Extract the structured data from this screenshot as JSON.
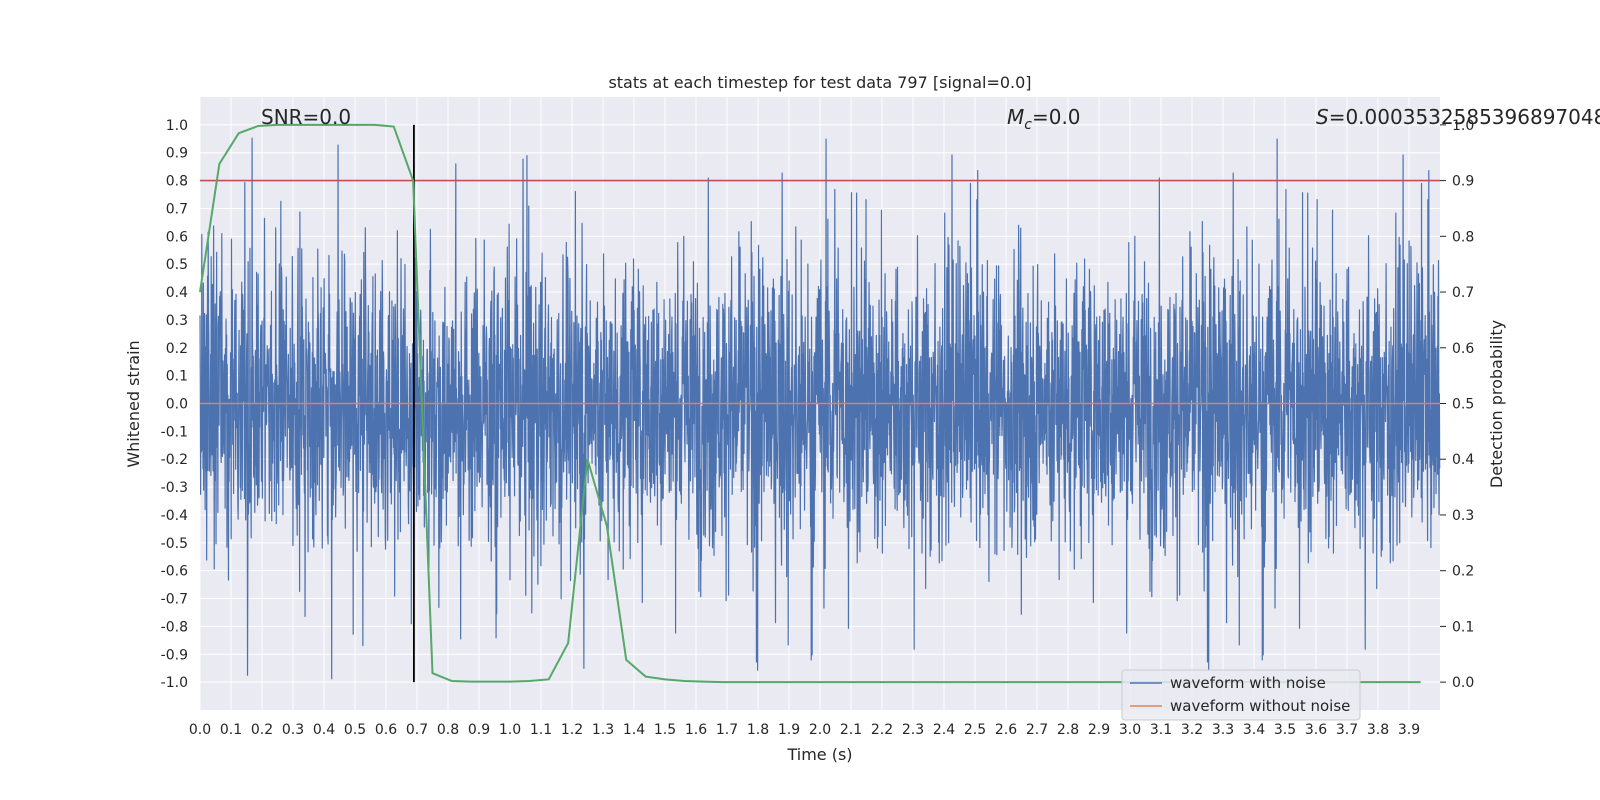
{
  "chart_data": {
    "type": "line",
    "title": "stats at each timestep for test data 797 [signal=0.0]",
    "xlabel": "Time (s)",
    "ylabel": "Whitened strain",
    "ylabel_right": "Detection probability",
    "xlim": [
      0.0,
      4.0
    ],
    "ylim": [
      -1.1,
      1.1
    ],
    "ylim_right": [
      -0.05,
      1.05
    ],
    "xticks": [
      "0.0",
      "0.1",
      "0.2",
      "0.3",
      "0.4",
      "0.5",
      "0.6",
      "0.7",
      "0.8",
      "0.9",
      "1.0",
      "1.1",
      "1.2",
      "1.3",
      "1.4",
      "1.5",
      "1.6",
      "1.7",
      "1.8",
      "1.9",
      "2.0",
      "2.1",
      "2.2",
      "2.3",
      "2.4",
      "2.5",
      "2.6",
      "2.7",
      "2.8",
      "2.9",
      "3.0",
      "3.1",
      "3.2",
      "3.3",
      "3.4",
      "3.5",
      "3.6",
      "3.7",
      "3.8",
      "3.9"
    ],
    "yticks_left": [
      "1.0",
      "0.9",
      "0.8",
      "0.7",
      "0.6",
      "0.5",
      "0.4",
      "0.3",
      "0.2",
      "0.1",
      "0.0",
      "-0.1",
      "-0.2",
      "-0.3",
      "-0.4",
      "-0.5",
      "-0.6",
      "-0.7",
      "-0.8",
      "-0.9",
      "-1.0"
    ],
    "yticks_right": [
      "1.0",
      "0.9",
      "0.8",
      "0.7",
      "0.6",
      "0.5",
      "0.4",
      "0.3",
      "0.2",
      "0.1",
      "0.0"
    ],
    "annotations": {
      "snr": "SNR=0.0",
      "mc_symbol": "M",
      "mc_sub": "c",
      "mc_value": "=0.0",
      "s_symbol": "S",
      "s_value": "=0.0003532585396897048"
    },
    "grid": true,
    "legend_position": "lower-right",
    "threshold_right": 0.9,
    "vertical_marker_x": 0.69,
    "noisy_waveform": {
      "name": "waveform with noise",
      "color": "#4c72b0",
      "samples": 4096,
      "range": [
        -1.0,
        1.0
      ],
      "description": "dense noise, mostly between -0.5 and 0.5 with spikes to +/-1.0"
    },
    "clean_waveform": {
      "name": "waveform without noise",
      "color": "#dd8452",
      "value": 0.0
    },
    "probability_series": {
      "color": "#55a868",
      "axis": "right",
      "x": [
        0.0,
        0.0625,
        0.125,
        0.1875,
        0.25,
        0.3125,
        0.375,
        0.4375,
        0.5,
        0.5625,
        0.625,
        0.6875,
        0.75,
        0.8125,
        0.875,
        0.9375,
        1.0,
        1.0625,
        1.125,
        1.1875,
        1.25,
        1.3125,
        1.375,
        1.4375,
        1.5,
        1.5625,
        1.625,
        1.6875,
        1.75,
        1.8125,
        1.875,
        1.9375,
        2.0,
        2.5,
        3.0,
        3.5,
        3.9375
      ],
      "y": [
        0.7,
        0.93,
        0.985,
        0.998,
        1.0,
        1.0,
        1.0,
        1.0,
        1.0,
        1.0,
        0.997,
        0.9,
        0.016,
        0.002,
        0.001,
        0.001,
        0.001,
        0.002,
        0.005,
        0.07,
        0.4,
        0.28,
        0.04,
        0.01,
        0.005,
        0.002,
        0.001,
        0.0,
        0.0,
        0.0,
        0.0,
        0.0,
        0.0,
        0.0,
        0.0,
        0.0,
        0.0
      ]
    },
    "colors": {
      "background": "#eaeaf2",
      "grid": "#ffffff",
      "threshold": "#c44e52",
      "marker": "#000000"
    }
  }
}
